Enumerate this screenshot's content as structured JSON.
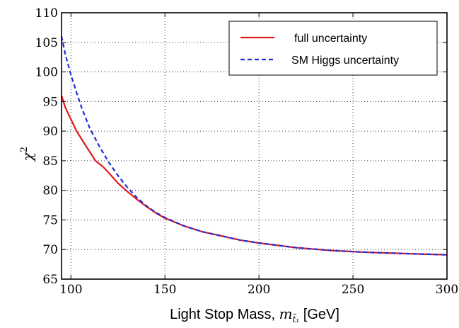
{
  "chart_data": {
    "type": "line",
    "title": "",
    "xlabel_text": "Light Stop Mass, ",
    "xlabel_symbol": "m",
    "xlabel_subscript": "t̃₁",
    "xlabel_unit": " [GeV]",
    "ylabel_symbol": "χ",
    "ylabel_superscript": "2",
    "xlim": [
      95,
      300
    ],
    "ylim": [
      65,
      110
    ],
    "xticks": [
      100,
      150,
      200,
      250,
      300
    ],
    "yticks": [
      65,
      70,
      75,
      80,
      85,
      90,
      95,
      100,
      105,
      110
    ],
    "grid": true,
    "legend_position": "top-right",
    "series": [
      {
        "name": "full uncertainty",
        "color": "#e31a1c",
        "style": "solid",
        "x": [
          95,
          97,
          100,
          103,
          106,
          110,
          113,
          117,
          120,
          125,
          130,
          135,
          140,
          145,
          150,
          160,
          170,
          180,
          190,
          200,
          220,
          240,
          260,
          280,
          300
        ],
        "y": [
          96,
          94,
          92,
          90,
          88.5,
          86.5,
          85,
          84,
          83,
          81.2,
          79.8,
          78.5,
          77.3,
          76.2,
          75.3,
          74,
          73,
          72.3,
          71.6,
          71.1,
          70.3,
          69.8,
          69.5,
          69.3,
          69.1
        ]
      },
      {
        "name": "SM Higgs uncertainty",
        "color": "#1f2bd9",
        "style": "dashed",
        "x": [
          95,
          97,
          100,
          103,
          106,
          110,
          115,
          120,
          125,
          130,
          135,
          140,
          145,
          150,
          160,
          170,
          180,
          190,
          200,
          220,
          240,
          260,
          280,
          300
        ],
        "y": [
          106,
          103,
          99.5,
          96.5,
          93.7,
          90.5,
          87.5,
          84.8,
          82.5,
          80.5,
          78.8,
          77.4,
          76.3,
          75.4,
          74,
          73,
          72.3,
          71.6,
          71.1,
          70.3,
          69.8,
          69.5,
          69.3,
          69.1
        ]
      }
    ]
  }
}
